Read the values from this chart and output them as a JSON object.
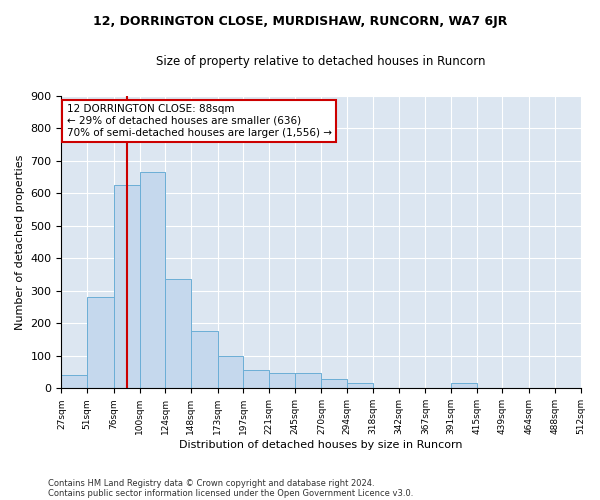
{
  "title": "12, DORRINGTON CLOSE, MURDISHAW, RUNCORN, WA7 6JR",
  "subtitle": "Size of property relative to detached houses in Runcorn",
  "xlabel": "Distribution of detached houses by size in Runcorn",
  "ylabel": "Number of detached properties",
  "footnote1": "Contains HM Land Registry data © Crown copyright and database right 2024.",
  "footnote2": "Contains public sector information licensed under the Open Government Licence v3.0.",
  "annotation_title": "12 DORRINGTON CLOSE: 88sqm",
  "annotation_line2": "← 29% of detached houses are smaller (636)",
  "annotation_line3": "70% of semi-detached houses are larger (1,556) →",
  "property_size": 88,
  "bar_color": "#c5d8ed",
  "bar_edge_color": "#6baed6",
  "background_color": "#dce6f1",
  "vline_color": "#cc0000",
  "annotation_box_color": "#ffffff",
  "annotation_box_edge": "#cc0000",
  "grid_color": "#ffffff",
  "bins": [
    27,
    51,
    76,
    100,
    124,
    148,
    173,
    197,
    221,
    245,
    270,
    294,
    318,
    342,
    367,
    391,
    415,
    439,
    464,
    488,
    512
  ],
  "counts": [
    42,
    280,
    625,
    665,
    335,
    175,
    100,
    55,
    47,
    47,
    30,
    15,
    0,
    0,
    0,
    15,
    0,
    0,
    0,
    0
  ],
  "ylim": [
    0,
    900
  ],
  "yticks": [
    0,
    100,
    200,
    300,
    400,
    500,
    600,
    700,
    800,
    900
  ]
}
